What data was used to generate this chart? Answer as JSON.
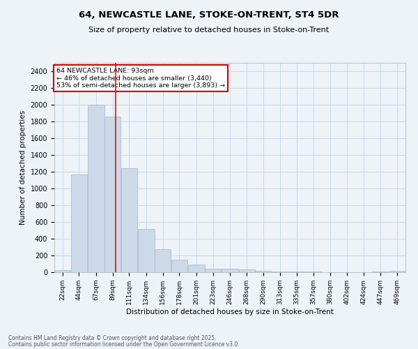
{
  "title": "64, NEWCASTLE LANE, STOKE-ON-TRENT, ST4 5DR",
  "subtitle": "Size of property relative to detached houses in Stoke-on-Trent",
  "xlabel": "Distribution of detached houses by size in Stoke-on-Trent",
  "ylabel": "Number of detached properties",
  "bar_color": "#ccd9e8",
  "bar_edge_color": "#a0b8d0",
  "grid_color": "#c8d8e8",
  "bg_color": "#eef3f8",
  "annotation_text": "64 NEWCASTLE LANE: 93sqm\n← 46% of detached houses are smaller (3,440)\n53% of semi-detached houses are larger (3,893) →",
  "annotation_box_color": "#ffffff",
  "annotation_box_edge": "#cc0000",
  "red_line_x": 93,
  "footer_line1": "Contains HM Land Registry data © Crown copyright and database right 2025.",
  "footer_line2": "Contains public sector information licensed under the Open Government Licence v3.0.",
  "categories": [
    "22sqm",
    "44sqm",
    "67sqm",
    "89sqm",
    "111sqm",
    "134sqm",
    "156sqm",
    "178sqm",
    "201sqm",
    "223sqm",
    "246sqm",
    "268sqm",
    "290sqm",
    "313sqm",
    "335sqm",
    "357sqm",
    "380sqm",
    "402sqm",
    "424sqm",
    "447sqm",
    "469sqm"
  ],
  "bin_edges": [
    11,
    33,
    55,
    78,
    100,
    122,
    145,
    167,
    189,
    212,
    234,
    257,
    279,
    301,
    324,
    346,
    368,
    391,
    413,
    435,
    458,
    480
  ],
  "values": [
    28,
    1170,
    2000,
    1860,
    1240,
    520,
    275,
    150,
    93,
    40,
    43,
    35,
    18,
    12,
    5,
    5,
    3,
    3,
    3,
    5,
    15
  ],
  "ylim": [
    0,
    2500
  ],
  "yticks": [
    0,
    200,
    400,
    600,
    800,
    1000,
    1200,
    1400,
    1600,
    1800,
    2000,
    2200,
    2400
  ]
}
